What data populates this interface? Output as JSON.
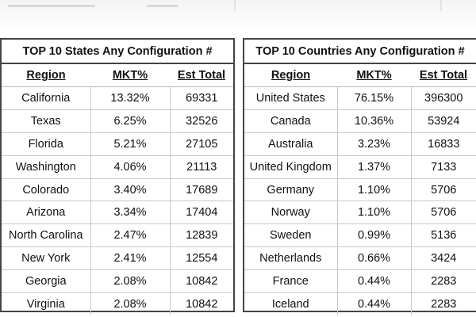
{
  "states_table": {
    "title": "TOP 10 States Any Configuration #",
    "headers": [
      "Region",
      "MKT%",
      "Est Total"
    ],
    "rows": [
      [
        "California",
        "13.32%",
        "69331"
      ],
      [
        "Texas",
        "6.25%",
        "32526"
      ],
      [
        "Florida",
        "5.21%",
        "27105"
      ],
      [
        "Washington",
        "4.06%",
        "21113"
      ],
      [
        "Colorado",
        "3.40%",
        "17689"
      ],
      [
        "Arizona",
        "3.34%",
        "17404"
      ],
      [
        "North Carolina",
        "2.47%",
        "12839"
      ],
      [
        "New York",
        "2.41%",
        "12554"
      ],
      [
        "Georgia",
        "2.08%",
        "10842"
      ],
      [
        "Virginia",
        "2.08%",
        "10842"
      ]
    ]
  },
  "countries_table": {
    "title": "TOP 10 Countries Any Configuration #",
    "headers": [
      "Region",
      "MKT%",
      "Est Total"
    ],
    "rows": [
      [
        "United States",
        "76.15%",
        "396300"
      ],
      [
        "Canada",
        "10.36%",
        "53924"
      ],
      [
        "Australia",
        "3.23%",
        "16833"
      ],
      [
        "United Kingdom",
        "1.37%",
        "7133"
      ],
      [
        "Germany",
        "1.10%",
        "5706"
      ],
      [
        "Norway",
        "1.10%",
        "5706"
      ],
      [
        "Sweden",
        "0.99%",
        "5136"
      ],
      [
        "Netherlands",
        "0.66%",
        "3424"
      ],
      [
        "France",
        "0.44%",
        "2283"
      ],
      [
        "Iceland",
        "0.44%",
        "2283"
      ]
    ]
  }
}
